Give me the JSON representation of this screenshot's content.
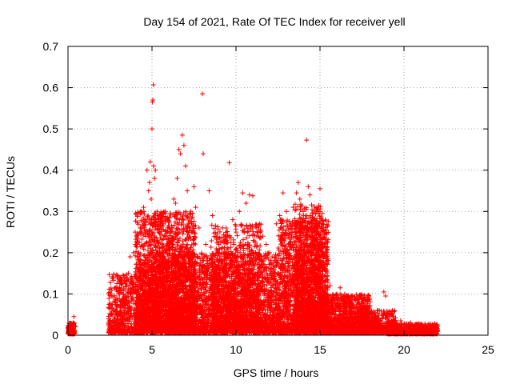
{
  "chart_data": {
    "type": "scatter",
    "title": "Day 154 of 2021, Rate Of TEC Index for receiver yell",
    "xlabel": "GPS time / hours",
    "ylabel": "ROTI / TECUs",
    "xlim": [
      0,
      25
    ],
    "ylim": [
      0,
      0.7
    ],
    "xticks": [
      0,
      5,
      10,
      15,
      20,
      25
    ],
    "yticks": [
      0,
      0.1,
      0.2,
      0.3,
      0.4,
      0.5,
      0.6,
      0.7
    ],
    "xtick_labels": [
      "0",
      "5",
      "10",
      "15",
      "20",
      "25"
    ],
    "ytick_labels": [
      "0",
      "0.1",
      "0.2",
      "0.3",
      "0.4",
      "0.5",
      "0.6",
      "0.7"
    ],
    "grid": true,
    "marker": "+",
    "color": "#ff0000",
    "series": [
      {
        "name": "ROTI",
        "points": [
          [
            0.0,
            0.018
          ],
          [
            0.05,
            0.012
          ],
          [
            0.1,
            0.02
          ],
          [
            0.15,
            0.01
          ],
          [
            0.2,
            0.025
          ],
          [
            0.25,
            0.015
          ],
          [
            0.3,
            0.03
          ],
          [
            0.35,
            0.045
          ],
          [
            0.4,
            0.012
          ],
          [
            0.45,
            0.02
          ],
          [
            0.0,
            0.005
          ],
          [
            0.2,
            0.008
          ],
          [
            2.5,
            0.02
          ],
          [
            2.6,
            0.05
          ],
          [
            2.7,
            0.06
          ],
          [
            2.8,
            0.04
          ],
          [
            2.9,
            0.09
          ],
          [
            3.0,
            0.03
          ],
          [
            3.1,
            0.07
          ],
          [
            3.2,
            0.05
          ],
          [
            3.3,
            0.1
          ],
          [
            3.4,
            0.08
          ],
          [
            3.5,
            0.12
          ],
          [
            3.6,
            0.15
          ],
          [
            3.7,
            0.19
          ],
          [
            3.8,
            0.13
          ],
          [
            3.9,
            0.2
          ],
          [
            4.0,
            0.25
          ],
          [
            4.1,
            0.22
          ],
          [
            4.2,
            0.18
          ],
          [
            4.3,
            0.26
          ],
          [
            4.4,
            0.3
          ],
          [
            4.5,
            0.31
          ],
          [
            4.6,
            0.28
          ],
          [
            4.7,
            0.4
          ],
          [
            4.8,
            0.35
          ],
          [
            4.85,
            0.37
          ],
          [
            4.9,
            0.42
          ],
          [
            4.95,
            0.33
          ],
          [
            5.0,
            0.5
          ],
          [
            5.02,
            0.565
          ],
          [
            5.05,
            0.57
          ],
          [
            5.08,
            0.607
          ],
          [
            5.1,
            0.41
          ],
          [
            5.15,
            0.38
          ],
          [
            5.2,
            0.4
          ],
          [
            5.3,
            0.3
          ],
          [
            5.4,
            0.25
          ],
          [
            5.5,
            0.28
          ],
          [
            5.6,
            0.22
          ],
          [
            5.7,
            0.2
          ],
          [
            5.8,
            0.3
          ],
          [
            5.9,
            0.25
          ],
          [
            6.0,
            0.21
          ],
          [
            6.1,
            0.18
          ],
          [
            6.2,
            0.26
          ],
          [
            6.3,
            0.33
          ],
          [
            6.4,
            0.32
          ],
          [
            6.5,
            0.38
          ],
          [
            6.6,
            0.45
          ],
          [
            6.7,
            0.44
          ],
          [
            6.8,
            0.485
          ],
          [
            6.9,
            0.46
          ],
          [
            7.0,
            0.41
          ],
          [
            7.1,
            0.35
          ],
          [
            7.2,
            0.27
          ],
          [
            7.3,
            0.3
          ],
          [
            7.4,
            0.25
          ],
          [
            7.5,
            0.36
          ],
          [
            7.6,
            0.31
          ],
          [
            7.8,
            0.26
          ],
          [
            8.0,
            0.585
          ],
          [
            8.05,
            0.44
          ],
          [
            8.2,
            0.22
          ],
          [
            8.4,
            0.35
          ],
          [
            8.6,
            0.29
          ],
          [
            8.8,
            0.24
          ],
          [
            9.0,
            0.21
          ],
          [
            9.2,
            0.26
          ],
          [
            9.4,
            0.2
          ],
          [
            9.6,
            0.418
          ],
          [
            9.8,
            0.28
          ],
          [
            10.0,
            0.25
          ],
          [
            10.2,
            0.3
          ],
          [
            10.4,
            0.345
          ],
          [
            10.6,
            0.32
          ],
          [
            10.8,
            0.34
          ],
          [
            11.0,
            0.338
          ],
          [
            11.2,
            0.26
          ],
          [
            11.4,
            0.27
          ],
          [
            11.6,
            0.24
          ],
          [
            11.8,
            0.22
          ],
          [
            12.0,
            0.2
          ],
          [
            12.2,
            0.17
          ],
          [
            12.4,
            0.27
          ],
          [
            12.6,
            0.29
          ],
          [
            12.8,
            0.345
          ],
          [
            13.0,
            0.3
          ],
          [
            13.2,
            0.22
          ],
          [
            13.4,
            0.31
          ],
          [
            13.6,
            0.345
          ],
          [
            13.7,
            0.37
          ],
          [
            13.8,
            0.33
          ],
          [
            14.0,
            0.3
          ],
          [
            14.2,
            0.473
          ],
          [
            14.3,
            0.36
          ],
          [
            14.4,
            0.34
          ],
          [
            14.6,
            0.28
          ],
          [
            14.8,
            0.3
          ],
          [
            15.0,
            0.355
          ],
          [
            15.1,
            0.22
          ],
          [
            15.2,
            0.18
          ],
          [
            15.4,
            0.1
          ],
          [
            15.6,
            0.12
          ],
          [
            15.8,
            0.09
          ],
          [
            16.0,
            0.1
          ],
          [
            16.2,
            0.115
          ],
          [
            16.4,
            0.09
          ],
          [
            16.6,
            0.08
          ],
          [
            16.8,
            0.07
          ],
          [
            17.0,
            0.065
          ],
          [
            17.2,
            0.06
          ],
          [
            17.4,
            0.07
          ],
          [
            17.6,
            0.05
          ],
          [
            17.8,
            0.04
          ],
          [
            18.0,
            0.055
          ],
          [
            18.2,
            0.045
          ],
          [
            18.4,
            0.03
          ],
          [
            18.6,
            0.035
          ],
          [
            18.8,
            0.105
          ],
          [
            18.9,
            0.095
          ],
          [
            19.0,
            0.03
          ],
          [
            19.2,
            0.025
          ],
          [
            19.4,
            0.03
          ],
          [
            19.6,
            0.02
          ],
          [
            19.8,
            0.035
          ],
          [
            20.0,
            0.025
          ],
          [
            20.2,
            0.02
          ],
          [
            20.4,
            0.03
          ],
          [
            20.6,
            0.022
          ],
          [
            20.8,
            0.018
          ],
          [
            21.0,
            0.025
          ],
          [
            21.2,
            0.02
          ],
          [
            21.4,
            0.015
          ],
          [
            21.6,
            0.02
          ],
          [
            21.8,
            0.018
          ],
          [
            22.0,
            0.012
          ]
        ]
      }
    ],
    "dense_bands": [
      {
        "x": [
          2.4,
          4.5
        ],
        "y": [
          0.005,
          0.15
        ],
        "count": 600,
        "seed": 1
      },
      {
        "x": [
          4.0,
          7.6
        ],
        "y": [
          0.005,
          0.3
        ],
        "count": 2200,
        "seed": 2
      },
      {
        "x": [
          4.5,
          7.5
        ],
        "y": [
          0.02,
          0.2
        ],
        "count": 1300,
        "seed": 3
      },
      {
        "x": [
          7.5,
          12.5
        ],
        "y": [
          0.005,
          0.2
        ],
        "count": 2200,
        "seed": 4
      },
      {
        "x": [
          8.5,
          11.5
        ],
        "y": [
          0.02,
          0.27
        ],
        "count": 900,
        "seed": 5
      },
      {
        "x": [
          12.5,
          15.5
        ],
        "y": [
          0.005,
          0.28
        ],
        "count": 1800,
        "seed": 6
      },
      {
        "x": [
          13.5,
          15.2
        ],
        "y": [
          0.02,
          0.32
        ],
        "count": 900,
        "seed": 7
      },
      {
        "x": [
          15.0,
          18.0
        ],
        "y": [
          0.005,
          0.1
        ],
        "count": 1200,
        "seed": 8
      },
      {
        "x": [
          17.5,
          19.5
        ],
        "y": [
          0.005,
          0.06
        ],
        "count": 500,
        "seed": 9
      },
      {
        "x": [
          19.0,
          22.0
        ],
        "y": [
          0.003,
          0.028
        ],
        "count": 700,
        "seed": 10
      },
      {
        "x": [
          0.0,
          0.4
        ],
        "y": [
          0.003,
          0.03
        ],
        "count": 120,
        "seed": 11
      }
    ]
  }
}
